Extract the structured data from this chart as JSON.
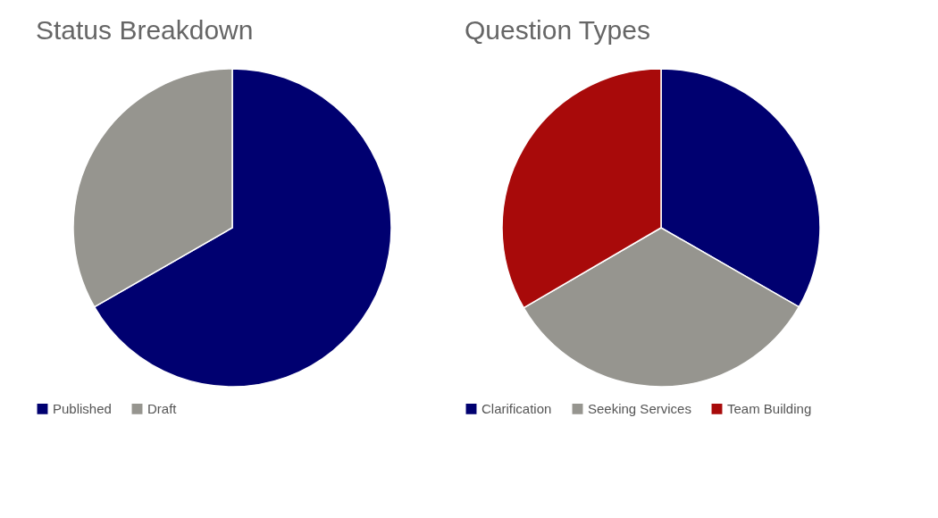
{
  "chart_data": [
    {
      "type": "pie",
      "title": "Status Breakdown",
      "categories": [
        "Published",
        "Draft"
      ],
      "values": [
        66.7,
        33.3
      ],
      "colors": [
        "#000070",
        "#96958f"
      ],
      "legend": "bottom"
    },
    {
      "type": "pie",
      "title": "Question Types",
      "categories": [
        "Clarification",
        "Seeking Services",
        "Team Building"
      ],
      "values": [
        33.3,
        33.3,
        33.4
      ],
      "colors": [
        "#000070",
        "#96958f",
        "#a80a0a"
      ],
      "legend": "bottom"
    }
  ]
}
